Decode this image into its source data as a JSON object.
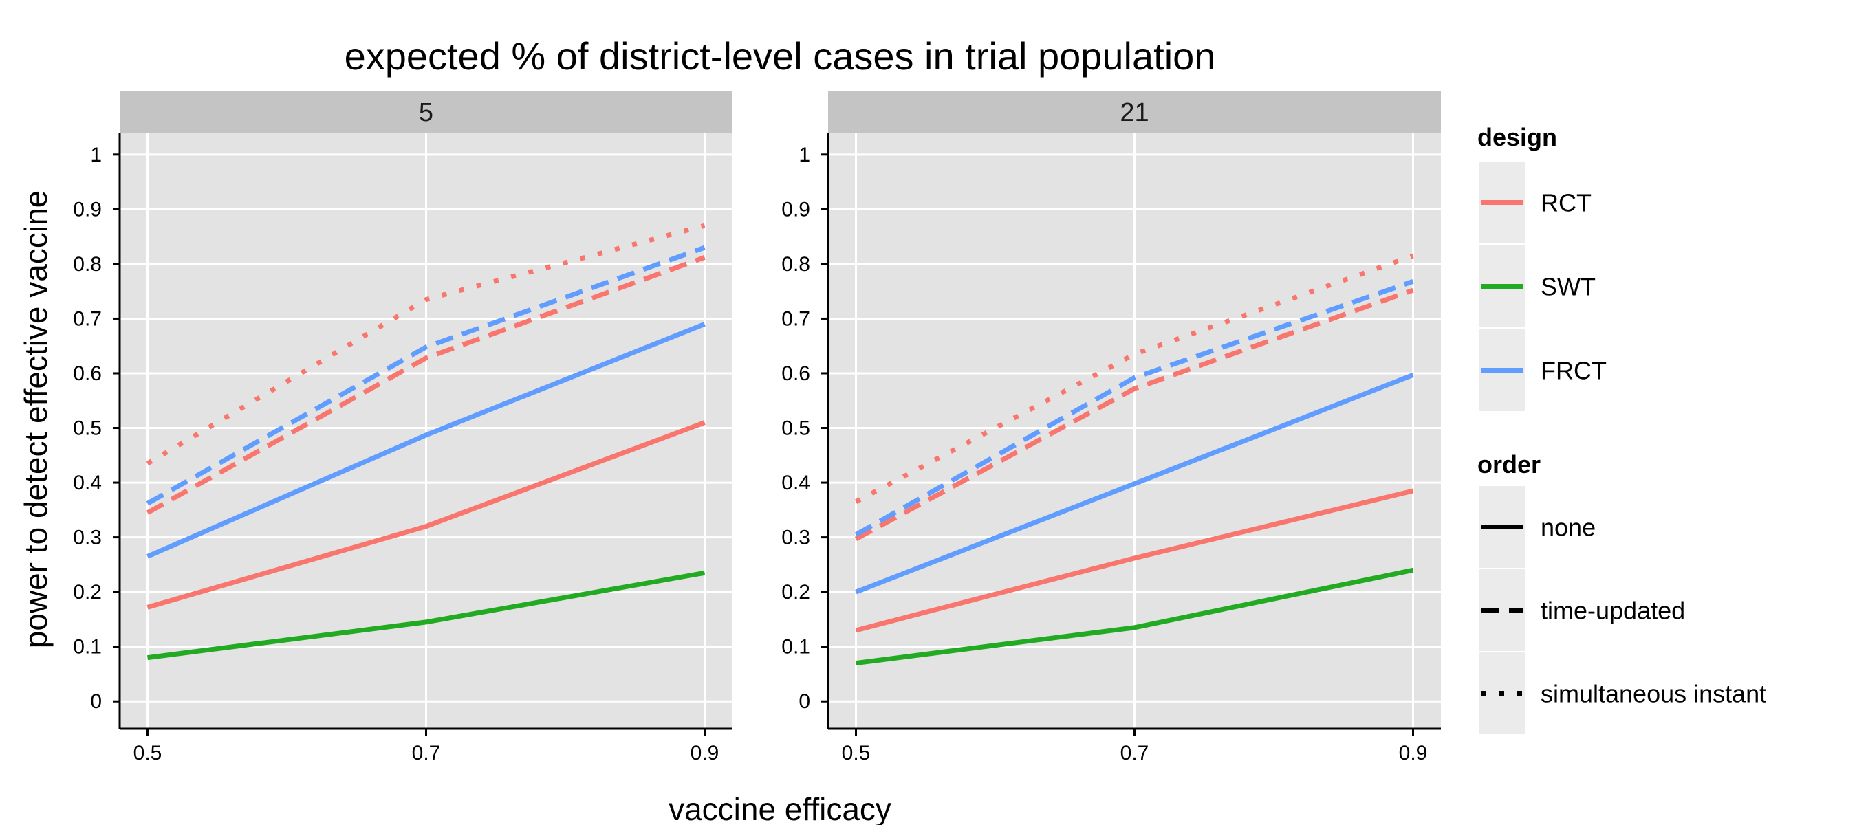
{
  "chart_data": {
    "type": "line",
    "title": "expected % of district-level cases in trial population",
    "xlabel": "vaccine efficacy",
    "ylabel": "power to detect effective vaccine",
    "x": [
      0.5,
      0.7,
      0.9
    ],
    "x_ticks": [
      "0.5",
      "0.7",
      "0.9"
    ],
    "y_ticks": [
      "0",
      "0.1",
      "0.2",
      "0.3",
      "0.4",
      "0.5",
      "0.6",
      "0.7",
      "0.8",
      "0.9",
      "1"
    ],
    "xlim": [
      0.48,
      0.92
    ],
    "ylim": [
      -0.05,
      1.04
    ],
    "grid": true,
    "legend_position": "right",
    "design_colors": {
      "RCT": "#F8766D",
      "SWT": "#22AA22",
      "FRCT": "#619CFF"
    },
    "panels": [
      {
        "strip": "5",
        "series": [
          {
            "design": "RCT",
            "order": "none",
            "values": [
              0.172,
              0.32,
              0.51
            ]
          },
          {
            "design": "SWT",
            "order": "none",
            "values": [
              0.08,
              0.145,
              0.235
            ]
          },
          {
            "design": "FRCT",
            "order": "none",
            "values": [
              0.265,
              0.487,
              0.69
            ]
          },
          {
            "design": "RCT",
            "order": "time-updated",
            "values": [
              0.345,
              0.628,
              0.812
            ]
          },
          {
            "design": "FRCT",
            "order": "time-updated",
            "values": [
              0.362,
              0.648,
              0.83
            ]
          },
          {
            "design": "RCT",
            "order": "simultaneous instant",
            "values": [
              0.435,
              0.735,
              0.87
            ]
          }
        ]
      },
      {
        "strip": "21",
        "series": [
          {
            "design": "RCT",
            "order": "none",
            "values": [
              0.13,
              0.262,
              0.385
            ]
          },
          {
            "design": "SWT",
            "order": "none",
            "values": [
              0.07,
              0.135,
              0.24
            ]
          },
          {
            "design": "FRCT",
            "order": "none",
            "values": [
              0.2,
              0.398,
              0.597
            ]
          },
          {
            "design": "RCT",
            "order": "time-updated",
            "values": [
              0.297,
              0.572,
              0.752
            ]
          },
          {
            "design": "FRCT",
            "order": "time-updated",
            "values": [
              0.305,
              0.592,
              0.768
            ]
          },
          {
            "design": "RCT",
            "order": "simultaneous instant",
            "values": [
              0.365,
              0.635,
              0.815
            ]
          }
        ]
      }
    ],
    "legend": {
      "design": {
        "title": "design",
        "items": [
          "RCT",
          "SWT",
          "FRCT"
        ]
      },
      "order": {
        "title": "order",
        "items": [
          "none",
          "time-updated",
          "simultaneous instant"
        ]
      }
    }
  }
}
